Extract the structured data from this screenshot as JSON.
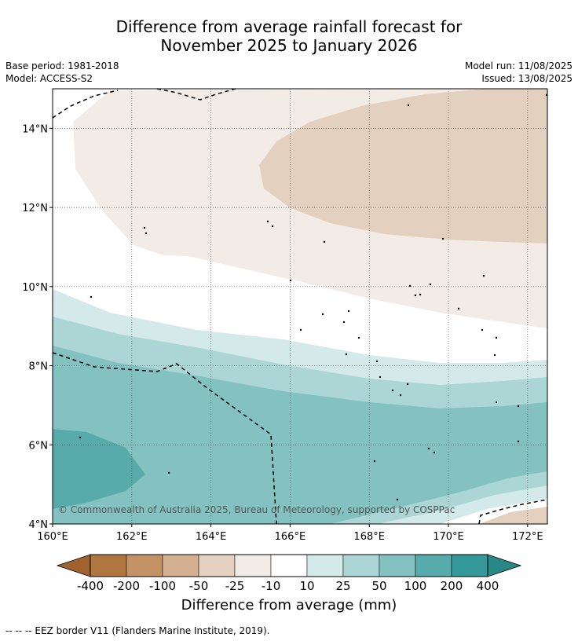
{
  "title_line1": "Difference from average rainfall forecast for",
  "title_line2": "November 2025 to January 2026",
  "meta": {
    "base_period": "Base period: 1981-2018",
    "model": "Model: ACCESS-S2",
    "model_run": "Model run: 11/08/2025",
    "issued": "Issued: 13/08/2025"
  },
  "copyright": "© Commonwealth of Australia 2025, Bureau of Meteorology, supported by COSPPac",
  "map": {
    "lon_range": [
      160,
      172.5
    ],
    "lat_range": [
      4,
      15
    ],
    "lon_ticks": [
      {
        "value": 160,
        "label": "160°E"
      },
      {
        "value": 162,
        "label": "162°E"
      },
      {
        "value": 164,
        "label": "164°E"
      },
      {
        "value": 166,
        "label": "166°E"
      },
      {
        "value": 168,
        "label": "168°E"
      },
      {
        "value": 170,
        "label": "170°E"
      },
      {
        "value": 172,
        "label": "172°E"
      }
    ],
    "lat_ticks": [
      {
        "value": 4,
        "label": "4°N"
      },
      {
        "value": 6,
        "label": "6°N"
      },
      {
        "value": 8,
        "label": "8°N"
      },
      {
        "value": 10,
        "label": "10°N"
      },
      {
        "value": 12,
        "label": "12°N"
      },
      {
        "value": 14,
        "label": "14°N"
      }
    ]
  },
  "colorbar": {
    "title": "Difference from average (mm)",
    "labels": [
      "-400",
      "-200",
      "-100",
      "-50",
      "-25",
      "-10",
      "10",
      "25",
      "50",
      "100",
      "200",
      "400"
    ],
    "colors": {
      "lt_minus400": "#a0622e",
      "m400_m200": "#b0763f",
      "m200_m100": "#c39366",
      "m100_m50": "#d3b190",
      "m50_m25": "#e3d0bf",
      "m25_m10": "#f3ece6",
      "m10_p10": "#ffffff",
      "p10_p25": "#d4e9e9",
      "p25_p50": "#acd6d6",
      "p50_p100": "#84c1c1",
      "p100_p200": "#58abab",
      "p200_p400": "#359999",
      "gt_400": "#2a8787"
    }
  },
  "footer": "--  --  -- EEZ border V11 (Flanders Marine Institute, 2019)."
}
